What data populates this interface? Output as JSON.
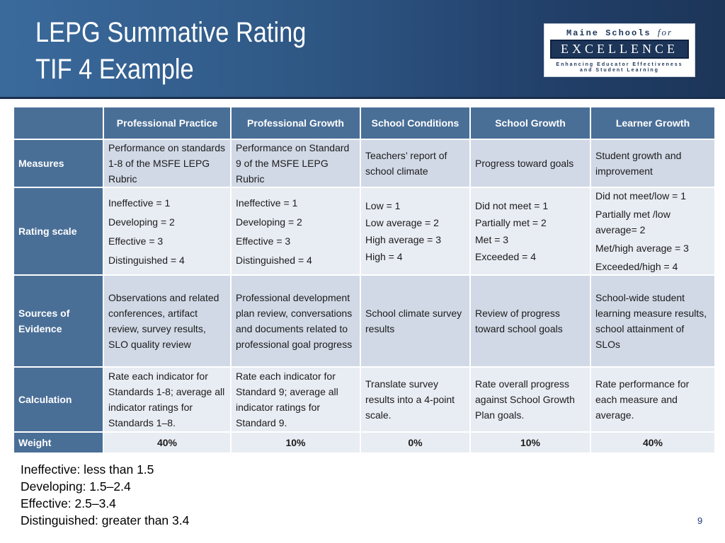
{
  "slide": {
    "title_line1": "LEPG Summative Rating",
    "title_line2": "TIF 4 Example",
    "page_number": "9"
  },
  "logo": {
    "line1_a": "Maine Schools",
    "line1_b": "for",
    "line2": "EXCELLENCE",
    "tagline1": "Enhancing Educator Effectiveness",
    "tagline2": "and Student Learning"
  },
  "table": {
    "columns": [
      "Professional Practice",
      "Professional Growth",
      "School Conditions",
      "School Growth",
      "Learner Growth"
    ],
    "rows": [
      {
        "label": "Measures",
        "cells": [
          [
            "Performance on standards 1-8 of the MSFE LEPG Rubric"
          ],
          [
            "Performance on Standard 9 of the MSFE LEPG Rubric"
          ],
          [
            "Teachers’ report of school climate"
          ],
          [
            "Progress toward goals"
          ],
          [
            "Student growth and improvement"
          ]
        ]
      },
      {
        "label": "Rating scale",
        "cells": [
          [
            "Ineffective = 1",
            "Developing = 2",
            "Effective = 3",
            "Distinguished = 4"
          ],
          [
            "Ineffective = 1",
            "Developing = 2",
            "Effective = 3",
            "Distinguished = 4"
          ],
          [
            "Low = 1",
            "Low average = 2",
            "High average = 3",
            "High = 4"
          ],
          [
            "Did not meet = 1",
            "Partially met = 2",
            "Met = 3",
            "Exceeded = 4"
          ],
          [
            "Did not meet/low = 1",
            "Partially met /low average= 2",
            "Met/high average = 3",
            "Exceeded/high = 4"
          ]
        ]
      },
      {
        "label": "Sources of Evidence",
        "cells": [
          [
            "Observations and related conferences, artifact review, survey results, SLO quality review"
          ],
          [
            "Professional development plan review, conversations and documents related to professional goal progress"
          ],
          [
            "School climate survey results"
          ],
          [
            "Review of progress toward school goals"
          ],
          [
            "School-wide student learning measure results, school attainment of SLOs"
          ]
        ]
      },
      {
        "label": "Calculation",
        "cells": [
          [
            "Rate each indicator for Standards 1-8; average all indicator ratings for Standards 1–8."
          ],
          [
            "Rate each indicator for Standard 9; average all indicator ratings for Standard 9."
          ],
          [
            "Translate survey results into a 4-point scale."
          ],
          [
            "Rate overall progress against School Growth Plan goals."
          ],
          [
            "Rate performance for each measure and average."
          ]
        ]
      }
    ],
    "weight_label": "Weight",
    "weights": [
      "40%",
      "10%",
      "0%",
      "10%",
      "40%"
    ]
  },
  "legend": [
    "Ineffective: less than 1.5",
    "Developing: 1.5–2.4",
    "Effective: 2.5–3.4",
    "Distinguished: greater than 3.4"
  ]
}
